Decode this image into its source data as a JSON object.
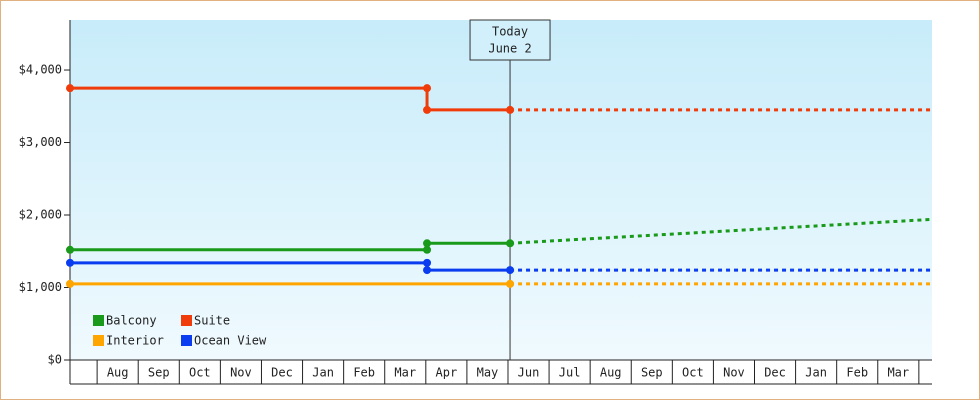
{
  "chart_data": {
    "type": "line",
    "ylim": [
      0,
      4690
    ],
    "yticks": [
      {
        "value": 0,
        "label": "$0"
      },
      {
        "value": 1000,
        "label": "$1,000"
      },
      {
        "value": 2000,
        "label": "$2,000"
      },
      {
        "value": 3000,
        "label": "$3,000"
      },
      {
        "value": 4000,
        "label": "$4,000"
      }
    ],
    "xlim": [
      0.34,
      21.32
    ],
    "xticks": [
      {
        "value": 1.5,
        "label": "Aug"
      },
      {
        "value": 2.5,
        "label": "Sep"
      },
      {
        "value": 3.5,
        "label": "Oct"
      },
      {
        "value": 4.5,
        "label": "Nov"
      },
      {
        "value": 5.5,
        "label": "Dec"
      },
      {
        "value": 6.5,
        "label": "Jan"
      },
      {
        "value": 7.5,
        "label": "Feb"
      },
      {
        "value": 8.5,
        "label": "Mar"
      },
      {
        "value": 9.5,
        "label": "Apr"
      },
      {
        "value": 10.5,
        "label": "May"
      },
      {
        "value": 11.5,
        "label": "Jun"
      },
      {
        "value": 12.5,
        "label": "Jul"
      },
      {
        "value": 13.5,
        "label": "Aug"
      },
      {
        "value": 14.5,
        "label": "Sep"
      },
      {
        "value": 15.5,
        "label": "Oct"
      },
      {
        "value": 16.5,
        "label": "Nov"
      },
      {
        "value": 17.5,
        "label": "Dec"
      },
      {
        "value": 18.5,
        "label": "Jan"
      },
      {
        "value": 19.5,
        "label": "Feb"
      },
      {
        "value": 20.5,
        "label": "Mar"
      }
    ],
    "annotation": {
      "lines": [
        "Today",
        "June 2"
      ],
      "x": 11.05
    },
    "series": [
      {
        "name": "Balcony",
        "color": "#1a9a1a",
        "x": [
          0.34,
          9.03,
          9.03,
          11.05
        ],
        "values": [
          1520,
          1520,
          1610,
          1610
        ],
        "projection": {
          "x": [
            11.05,
            21.32
          ],
          "values": [
            1610,
            1940
          ]
        }
      },
      {
        "name": "Suite",
        "color": "#f03c0a",
        "x": [
          0.34,
          9.03,
          9.03,
          11.05
        ],
        "values": [
          3750,
          3750,
          3450,
          3450
        ],
        "projection": {
          "x": [
            11.05,
            21.32
          ],
          "values": [
            3450,
            3450
          ]
        }
      },
      {
        "name": "Interior",
        "color": "#ffa500",
        "x": [
          0.34,
          11.05
        ],
        "values": [
          1050,
          1050
        ],
        "projection": {
          "x": [
            11.05,
            21.32
          ],
          "values": [
            1050,
            1050
          ]
        }
      },
      {
        "name": "Ocean View",
        "color": "#0a3cf0",
        "x": [
          0.34,
          9.03,
          9.03,
          11.05
        ],
        "values": [
          1340,
          1340,
          1240,
          1240
        ],
        "projection": {
          "x": [
            11.05,
            21.32
          ],
          "values": [
            1240,
            1240
          ]
        }
      }
    ]
  }
}
